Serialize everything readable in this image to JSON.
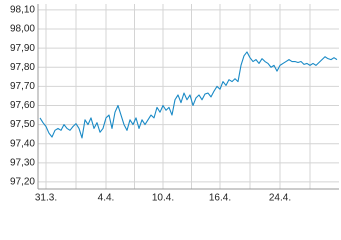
{
  "chart_data": {
    "type": "line",
    "categories": [
      null,
      null,
      "31.3.",
      null,
      null,
      null,
      null,
      null,
      null,
      null,
      null,
      null,
      null,
      null,
      null,
      null,
      null,
      null,
      null,
      null,
      null,
      null,
      "4.4.",
      null,
      null,
      null,
      null,
      null,
      null,
      null,
      null,
      null,
      null,
      null,
      null,
      null,
      null,
      null,
      null,
      null,
      null,
      "10.4.",
      null,
      null,
      null,
      null,
      null,
      null,
      null,
      null,
      null,
      null,
      null,
      null,
      null,
      null,
      null,
      null,
      null,
      null,
      "16.4.",
      null,
      null,
      null,
      null,
      null,
      null,
      null,
      null,
      null,
      null,
      null,
      null,
      null,
      null,
      null,
      null,
      null,
      null,
      null,
      "24.4.",
      null,
      null,
      null,
      null,
      null,
      null,
      null,
      null,
      null,
      null,
      null,
      null,
      null,
      null,
      null,
      null,
      null,
      null,
      null
    ],
    "values": [
      97.535,
      97.51,
      97.49,
      97.455,
      97.435,
      97.47,
      97.48,
      97.47,
      97.5,
      97.48,
      97.47,
      97.49,
      97.505,
      97.48,
      97.43,
      97.525,
      97.5,
      97.535,
      97.48,
      97.51,
      97.46,
      97.48,
      97.535,
      97.55,
      97.48,
      97.565,
      97.6,
      97.55,
      97.5,
      97.47,
      97.525,
      97.5,
      97.535,
      97.48,
      97.525,
      97.5,
      97.525,
      97.55,
      97.535,
      97.59,
      97.565,
      97.6,
      97.575,
      97.59,
      97.55,
      97.63,
      97.655,
      97.615,
      97.665,
      97.63,
      97.655,
      97.6,
      97.64,
      97.655,
      97.63,
      97.66,
      97.665,
      97.645,
      97.675,
      97.7,
      97.685,
      97.725,
      97.705,
      97.735,
      97.725,
      97.74,
      97.725,
      97.81,
      97.86,
      97.88,
      97.85,
      97.83,
      97.84,
      97.82,
      97.845,
      97.83,
      97.82,
      97.8,
      97.81,
      97.78,
      97.81,
      97.82,
      97.83,
      97.84,
      97.83,
      97.83,
      97.825,
      97.83,
      97.815,
      97.82,
      97.81,
      97.82,
      97.81,
      97.825,
      97.84,
      97.855,
      97.845,
      97.84,
      97.85,
      97.84
    ],
    "color": "#1a8ac6",
    "ylim": [
      97.163,
      98.131
    ],
    "yticks": [
      {
        "value": 97.2,
        "label": "97,20"
      },
      {
        "value": 97.3,
        "label": "97,30"
      },
      {
        "value": 97.4,
        "label": "97,40"
      },
      {
        "value": 97.5,
        "label": "97,50"
      },
      {
        "value": 97.6,
        "label": "97,60"
      },
      {
        "value": 97.7,
        "label": "97,70"
      },
      {
        "value": 97.8,
        "label": "97,80"
      },
      {
        "value": 97.9,
        "label": "97,90"
      },
      {
        "value": 98.0,
        "label": "98,00"
      },
      {
        "value": 98.1,
        "label": "98,10"
      }
    ],
    "grid": true
  }
}
